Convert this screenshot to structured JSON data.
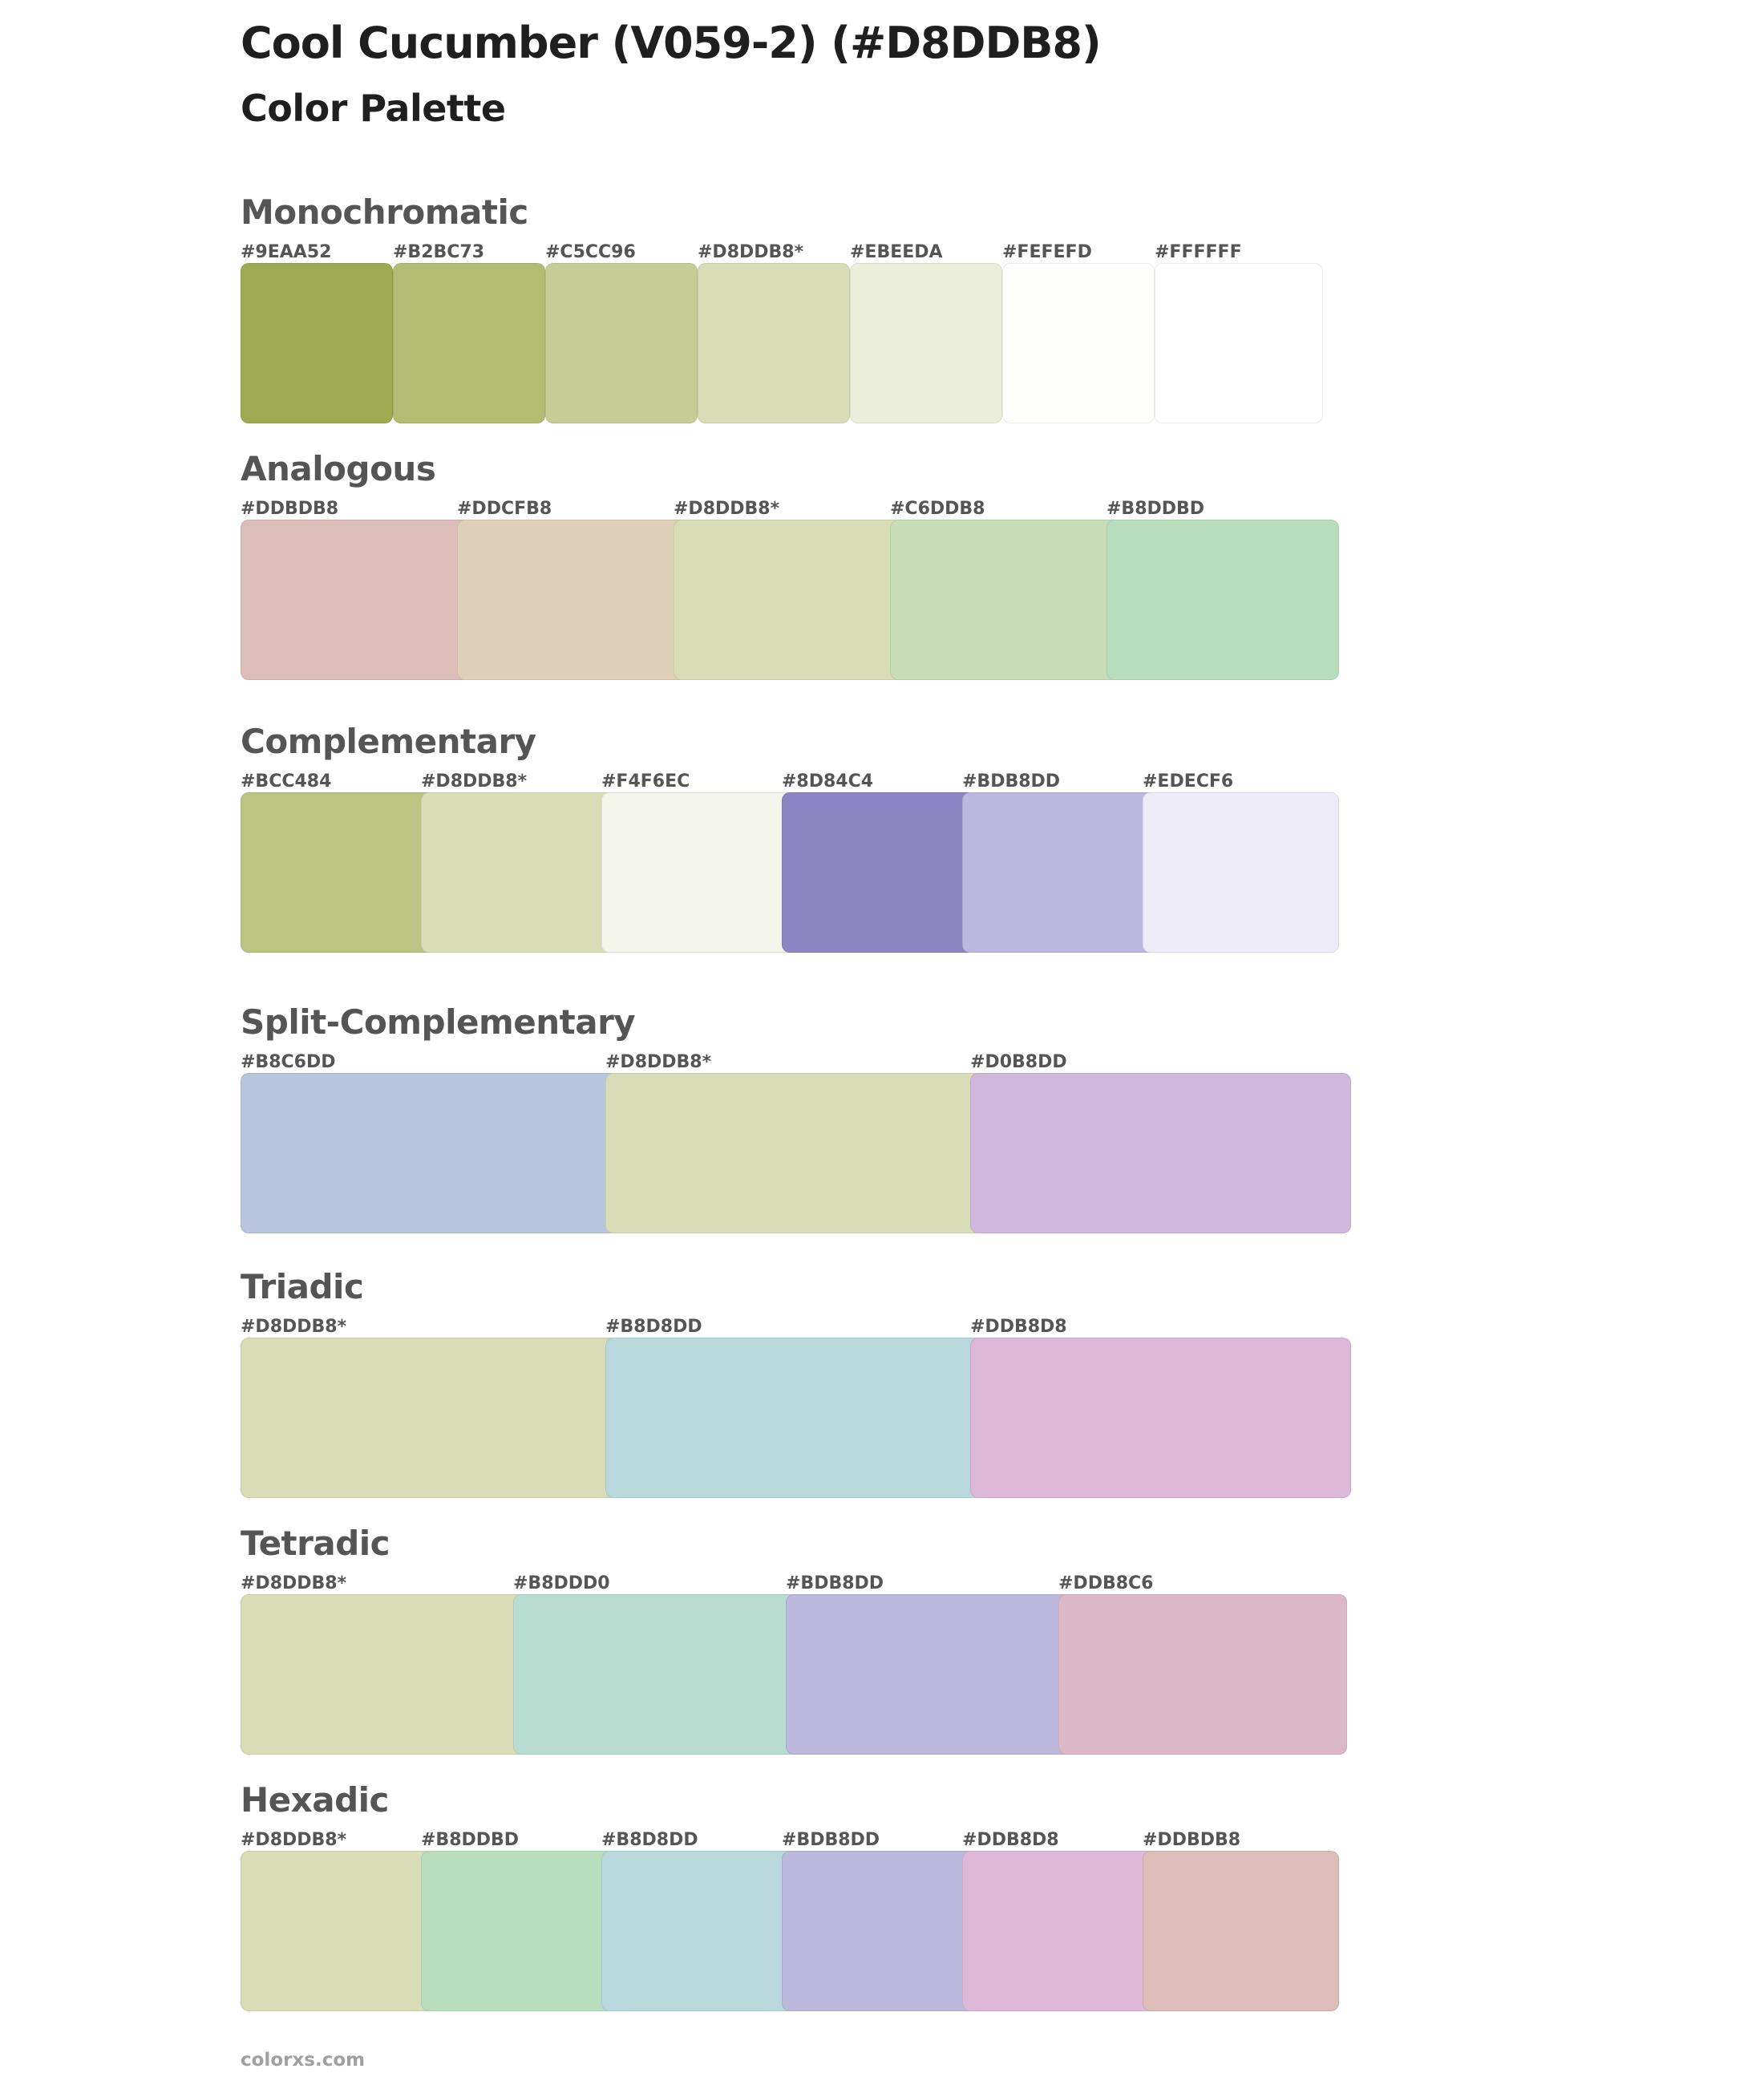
{
  "title": "Cool Cucumber (V059-2) (#D8DDB8)",
  "subtitle": "Color Palette",
  "sections": [
    {
      "name": "Monochromatic",
      "swatches": [
        {
          "hex": "#9EAA52",
          "label": "#9EAA52"
        },
        {
          "hex": "#B2BC73",
          "label": "#B2BC73"
        },
        {
          "hex": "#C5CC96",
          "label": "#C5CC96"
        },
        {
          "hex": "#D8DDB8",
          "label": "#D8DDB8*"
        },
        {
          "hex": "#EBEEDA",
          "label": "#EBEEDA"
        },
        {
          "hex": "#FEFEFD",
          "label": "#FEFEFD"
        },
        {
          "hex": "#FFFFFF",
          "label": "#FFFFFF"
        }
      ]
    },
    {
      "name": "Analogous",
      "swatches": [
        {
          "hex": "#DDBDB8",
          "label": "#DDBDB8"
        },
        {
          "hex": "#DDCFB8",
          "label": "#DDCFB8"
        },
        {
          "hex": "#D8DDB8",
          "label": "#D8DDB8*"
        },
        {
          "hex": "#C6DDB8",
          "label": "#C6DDB8"
        },
        {
          "hex": "#B8DDBD",
          "label": "#B8DDBD"
        }
      ]
    },
    {
      "name": "Complementary",
      "swatches": [
        {
          "hex": "#BCC484",
          "label": "#BCC484"
        },
        {
          "hex": "#D8DDB8",
          "label": "#D8DDB8*"
        },
        {
          "hex": "#F4F6EC",
          "label": "#F4F6EC"
        },
        {
          "hex": "#8D84C4",
          "label": "#8D84C4"
        },
        {
          "hex": "#BDB8DD",
          "label": "#BDB8DD"
        },
        {
          "hex": "#EDECF6",
          "label": "#EDECF6"
        }
      ]
    },
    {
      "name": "Split-Complementary",
      "swatches": [
        {
          "hex": "#B8C6DD",
          "label": "#B8C6DD"
        },
        {
          "hex": "#D8DDB8",
          "label": "#D8DDB8*"
        },
        {
          "hex": "#D0B8DD",
          "label": "#D0B8DD"
        }
      ]
    },
    {
      "name": "Triadic",
      "swatches": [
        {
          "hex": "#D8DDB8",
          "label": "#D8DDB8*"
        },
        {
          "hex": "#B8D8DD",
          "label": "#B8D8DD"
        },
        {
          "hex": "#DDB8D8",
          "label": "#DDB8D8"
        }
      ]
    },
    {
      "name": "Tetradic",
      "swatches": [
        {
          "hex": "#D8DDB8",
          "label": "#D8DDB8*"
        },
        {
          "hex": "#B8DDD0",
          "label": "#B8DDD0"
        },
        {
          "hex": "#BDB8DD",
          "label": "#BDB8DD"
        },
        {
          "hex": "#DDB8C6",
          "label": "#DDB8C6"
        }
      ]
    },
    {
      "name": "Hexadic",
      "swatches": [
        {
          "hex": "#D8DDB8",
          "label": "#D8DDB8*"
        },
        {
          "hex": "#B8DDBD",
          "label": "#B8DDBD"
        },
        {
          "hex": "#B8D8DD",
          "label": "#B8D8DD"
        },
        {
          "hex": "#BDB8DD",
          "label": "#BDB8DD"
        },
        {
          "hex": "#DDB8D8",
          "label": "#DDB8D8"
        },
        {
          "hex": "#DDBDB8",
          "label": "#DDBDB8"
        }
      ]
    }
  ],
  "footer": "colorxs.com"
}
